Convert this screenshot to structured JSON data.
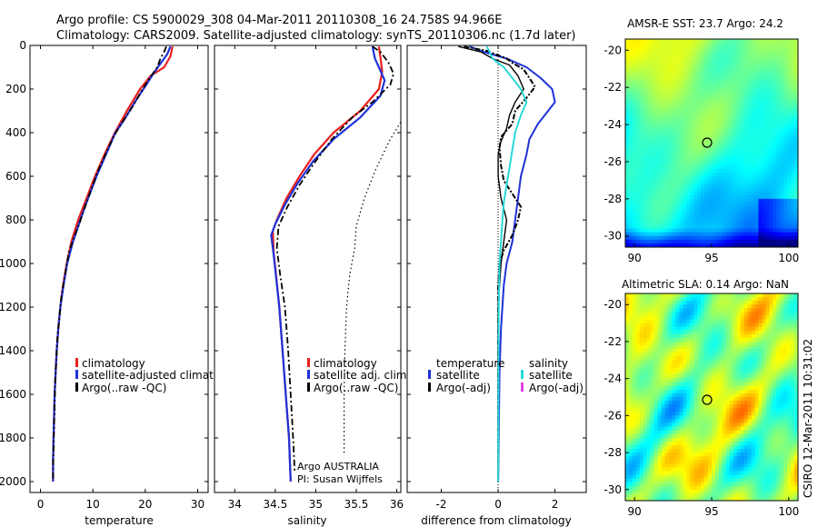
{
  "figure": {
    "title_line1": "Argo profile: CS 5900029_308 04-Mar-2011 20110308_16 24.758S 94.966E",
    "title_line2": "Climatology: CARS2009. Satellite-adjusted climatology: synTS_20110306.nc (1.7d later)",
    "side_label": "CSIRO 12-Mar-2011 10:31:02"
  },
  "colors": {
    "climatology": "#e8201e",
    "satellite": "#1e32d8",
    "argo": "#000000",
    "salinity_satellite": "#28d8d8",
    "salinity_argo": "#e040e0"
  },
  "chart_data": [
    {
      "type": "line",
      "id": "temperature",
      "xlabel": "temperature",
      "xlim": [
        -2,
        32
      ],
      "ylim": [
        2050,
        0
      ],
      "xticks": [
        0,
        10,
        20,
        30
      ],
      "yticks": [
        0,
        200,
        400,
        600,
        800,
        1000,
        1200,
        1400,
        1600,
        1800,
        2000
      ],
      "legend": [
        "climatology",
        "satellite-adjusted climatolo",
        "Argo(..raw -QC)"
      ],
      "series": [
        {
          "name": "climatology",
          "color": "#e8201e",
          "width": 2.2,
          "dash": "",
          "points": [
            [
              25.2,
              5
            ],
            [
              24.8,
              50
            ],
            [
              23.6,
              100
            ],
            [
              21.0,
              140
            ],
            [
              19.0,
              200
            ],
            [
              16.5,
              300
            ],
            [
              14.2,
              400
            ],
            [
              12.2,
              500
            ],
            [
              10.4,
              600
            ],
            [
              8.8,
              700
            ],
            [
              7.2,
              800
            ],
            [
              5.9,
              900
            ],
            [
              5.0,
              1000
            ],
            [
              4.3,
              1100
            ],
            [
              3.8,
              1200
            ],
            [
              3.4,
              1300
            ],
            [
              3.1,
              1400
            ],
            [
              2.9,
              1500
            ],
            [
              2.7,
              1600
            ],
            [
              2.6,
              1700
            ],
            [
              2.5,
              1800
            ],
            [
              2.4,
              1900
            ],
            [
              2.4,
              2000
            ]
          ]
        },
        {
          "name": "satellite-adjusted climatolo",
          "color": "#1e32d8",
          "width": 2.2,
          "dash": "",
          "points": [
            [
              24.8,
              5
            ],
            [
              24.2,
              40
            ],
            [
              23.0,
              80
            ],
            [
              21.8,
              120
            ],
            [
              20.2,
              180
            ],
            [
              18.0,
              260
            ],
            [
              16.0,
              340
            ],
            [
              14.3,
              400
            ],
            [
              12.5,
              500
            ],
            [
              10.7,
              600
            ],
            [
              9.1,
              700
            ],
            [
              7.6,
              800
            ],
            [
              6.2,
              900
            ],
            [
              5.1,
              1000
            ],
            [
              4.4,
              1100
            ],
            [
              3.8,
              1200
            ],
            [
              3.4,
              1300
            ],
            [
              3.1,
              1400
            ],
            [
              2.9,
              1500
            ],
            [
              2.7,
              1600
            ],
            [
              2.6,
              1700
            ],
            [
              2.5,
              1800
            ],
            [
              2.4,
              1900
            ],
            [
              2.4,
              2000
            ]
          ]
        },
        {
          "name": "Argo(..raw -QC)",
          "color": "#000000",
          "width": 1.8,
          "dash": "7,3,2,3",
          "points": [
            [
              24.0,
              5
            ],
            [
              23.6,
              30
            ],
            [
              22.9,
              60
            ],
            [
              22.3,
              100
            ],
            [
              21.1,
              140
            ],
            [
              19.5,
              200
            ],
            [
              17.6,
              280
            ],
            [
              15.4,
              360
            ],
            [
              13.9,
              420
            ],
            [
              12.4,
              500
            ],
            [
              10.9,
              580
            ],
            [
              9.4,
              680
            ],
            [
              8.2,
              760
            ],
            [
              7.4,
              820
            ],
            [
              6.4,
              880
            ],
            [
              5.4,
              950
            ],
            [
              4.7,
              1050
            ],
            [
              4.0,
              1150
            ],
            [
              3.6,
              1250
            ],
            [
              3.2,
              1350
            ],
            [
              3.0,
              1450
            ],
            [
              2.8,
              1550
            ],
            [
              2.7,
              1650
            ],
            [
              2.6,
              1750
            ],
            [
              2.5,
              1850
            ],
            [
              2.4,
              1950
            ],
            [
              2.4,
              2000
            ]
          ]
        }
      ]
    },
    {
      "type": "line",
      "id": "salinity",
      "xlabel": "salinity",
      "xlim": [
        33.75,
        36.05
      ],
      "ylim": [
        2050,
        0
      ],
      "xticks": [
        34,
        34.5,
        35,
        35.5,
        36
      ],
      "legend": [
        "climatology",
        "satellite adj. clim.",
        "Argo(..raw -QC)"
      ],
      "annotation": [
        "Argo AUSTRALIA",
        "PI: Susan Wijffels"
      ],
      "series": [
        {
          "name": "climatology",
          "color": "#e8201e",
          "width": 2.2,
          "dash": "",
          "points": [
            [
              35.78,
              5
            ],
            [
              35.8,
              60
            ],
            [
              35.82,
              120
            ],
            [
              35.78,
              200
            ],
            [
              35.55,
              300
            ],
            [
              35.22,
              400
            ],
            [
              34.98,
              500
            ],
            [
              34.8,
              600
            ],
            [
              34.64,
              700
            ],
            [
              34.52,
              800
            ],
            [
              34.47,
              850
            ],
            [
              34.48,
              950
            ],
            [
              34.51,
              1050
            ],
            [
              34.55,
              1200
            ],
            [
              34.59,
              1400
            ],
            [
              34.63,
              1600
            ],
            [
              34.67,
              1800
            ],
            [
              34.69,
              2000
            ]
          ]
        },
        {
          "name": "satellite adj. clim.",
          "color": "#1e32d8",
          "width": 2.2,
          "dash": "",
          "points": [
            [
              35.7,
              5
            ],
            [
              35.73,
              60
            ],
            [
              35.78,
              100
            ],
            [
              35.85,
              160
            ],
            [
              35.8,
              230
            ],
            [
              35.55,
              330
            ],
            [
              35.22,
              430
            ],
            [
              34.97,
              530
            ],
            [
              34.78,
              630
            ],
            [
              34.62,
              730
            ],
            [
              34.5,
              820
            ],
            [
              34.45,
              870
            ],
            [
              34.48,
              960
            ],
            [
              34.51,
              1060
            ],
            [
              34.55,
              1200
            ],
            [
              34.59,
              1400
            ],
            [
              34.63,
              1600
            ],
            [
              34.67,
              1800
            ],
            [
              34.69,
              2000
            ]
          ]
        },
        {
          "name": "Argo(..raw -QC)",
          "color": "#000000",
          "width": 1.8,
          "dash": "7,3,2,3",
          "points": [
            [
              35.7,
              5
            ],
            [
              35.8,
              30
            ],
            [
              35.9,
              80
            ],
            [
              35.96,
              130
            ],
            [
              35.92,
              180
            ],
            [
              35.7,
              260
            ],
            [
              35.45,
              330
            ],
            [
              35.2,
              430
            ],
            [
              34.98,
              540
            ],
            [
              34.8,
              640
            ],
            [
              34.65,
              740
            ],
            [
              34.54,
              830
            ],
            [
              34.52,
              930
            ],
            [
              34.56,
              1050
            ],
            [
              34.62,
              1200
            ],
            [
              34.66,
              1400
            ],
            [
              34.69,
              1600
            ],
            [
              34.72,
              1800
            ],
            [
              34.74,
              1950
            ]
          ]
        },
        {
          "name": "",
          "color": "#000000",
          "width": 1.2,
          "dash": "1.5,3",
          "points": [
            [
              36.1,
              320
            ],
            [
              35.92,
              430
            ],
            [
              35.75,
              560
            ],
            [
              35.6,
              700
            ],
            [
              35.5,
              830
            ],
            [
              35.48,
              930
            ],
            [
              35.42,
              1050
            ],
            [
              35.38,
              1200
            ],
            [
              35.36,
              1400
            ],
            [
              35.35,
              1600
            ],
            [
              35.35,
              1800
            ],
            [
              35.35,
              1880
            ]
          ]
        }
      ]
    },
    {
      "type": "line",
      "id": "difference",
      "xlabel": "difference from climatology",
      "xlim": [
        -3.2,
        3.1
      ],
      "ylim": [
        2050,
        0
      ],
      "xticks": [
        -2,
        0,
        2
      ],
      "legend_temperature": {
        "heading": "temperature",
        "items": [
          "satellite",
          "Argo(-adj)"
        ]
      },
      "legend_salinity": {
        "heading": "salinity",
        "items": [
          "satellite",
          "Argo(-adj)"
        ]
      },
      "series": [
        {
          "name": "satellite",
          "color": "#1e32d8",
          "width": 2.0,
          "dash": "",
          "points": [
            [
              -1.0,
              5
            ],
            [
              -0.5,
              30
            ],
            [
              0.3,
              60
            ],
            [
              1.0,
              100
            ],
            [
              1.5,
              150
            ],
            [
              1.9,
              200
            ],
            [
              2.0,
              260
            ],
            [
              1.7,
              310
            ],
            [
              1.4,
              360
            ],
            [
              1.1,
              430
            ],
            [
              1.0,
              500
            ],
            [
              0.8,
              600
            ],
            [
              0.7,
              700
            ],
            [
              0.6,
              800
            ],
            [
              0.5,
              900
            ],
            [
              0.3,
              1000
            ],
            [
              0.2,
              1100
            ],
            [
              0.1,
              1300
            ],
            [
              0.05,
              1500
            ],
            [
              0.03,
              1700
            ],
            [
              0.0,
              2000
            ]
          ]
        },
        {
          "name": "Argo(-adj)",
          "color": "#000000",
          "width": 2.0,
          "dash": "6,2,2,2",
          "points": [
            [
              -1.2,
              5
            ],
            [
              -0.4,
              25
            ],
            [
              0.3,
              60
            ],
            [
              0.5,
              80
            ],
            [
              0.9,
              110
            ],
            [
              1.1,
              150
            ],
            [
              1.3,
              190
            ],
            [
              1.0,
              240
            ],
            [
              0.6,
              300
            ],
            [
              0.5,
              360
            ],
            [
              0.1,
              420
            ],
            [
              0.05,
              470
            ],
            [
              0.1,
              550
            ],
            [
              0.2,
              620
            ],
            [
              0.5,
              680
            ],
            [
              0.8,
              740
            ],
            [
              0.7,
              800
            ],
            [
              0.5,
              870
            ],
            [
              0.2,
              940
            ],
            [
              0.05,
              1000
            ],
            [
              0.0,
              1100
            ],
            [
              0.0,
              1300
            ],
            [
              0.0,
              1600
            ],
            [
              0.0,
              2000
            ]
          ]
        },
        {
          "name": "Argo(-adj)",
          "color": "#000000",
          "width": 1.4,
          "dash": "",
          "points": [
            [
              -1.4,
              5
            ],
            [
              -0.6,
              30
            ],
            [
              -0.2,
              60
            ],
            [
              0.4,
              90
            ],
            [
              0.7,
              140
            ],
            [
              0.9,
              200
            ],
            [
              0.6,
              260
            ],
            [
              0.4,
              320
            ],
            [
              0.3,
              380
            ],
            [
              0.1,
              440
            ],
            [
              0.0,
              500
            ],
            [
              0.0,
              600
            ],
            [
              0.1,
              700
            ],
            [
              0.3,
              800
            ],
            [
              0.2,
              900
            ],
            [
              0.1,
              1000
            ],
            [
              0.0,
              1200
            ],
            [
              0.0,
              2000
            ]
          ]
        },
        {
          "name": "satellite",
          "color": "#28d8d8",
          "width": 2.0,
          "dash": "",
          "points": [
            [
              -0.4,
              5
            ],
            [
              -0.3,
              30
            ],
            [
              -0.2,
              60
            ],
            [
              0.2,
              100
            ],
            [
              0.5,
              150
            ],
            [
              0.8,
              200
            ],
            [
              1.0,
              260
            ],
            [
              0.8,
              320
            ],
            [
              0.6,
              400
            ],
            [
              0.5,
              480
            ],
            [
              0.4,
              560
            ],
            [
              0.3,
              640
            ],
            [
              0.2,
              720
            ],
            [
              0.15,
              800
            ],
            [
              0.1,
              900
            ],
            [
              0.05,
              1000
            ],
            [
              0.02,
              1200
            ],
            [
              0.01,
              1600
            ],
            [
              0.0,
              2000
            ]
          ]
        }
      ]
    },
    {
      "type": "heatmap",
      "id": "sst_map",
      "title": "AMSR-E SST: 23.7 Argo: 24.2",
      "xlim": [
        89.4,
        100.6
      ],
      "ylim": [
        -30.6,
        -19.4
      ],
      "xticks": [
        90,
        95,
        100
      ],
      "yticks": [
        -20,
        -22,
        -24,
        -26,
        -28,
        -30
      ],
      "marker": [
        95.0,
        -24.76
      ]
    },
    {
      "type": "heatmap",
      "id": "sla_map",
      "title": "Altimetric SLA: 0.14 Argo: NaN",
      "xlim": [
        89.4,
        100.6
      ],
      "ylim": [
        -30.6,
        -19.4
      ],
      "xticks": [
        90,
        95,
        100
      ],
      "yticks": [
        -20,
        -22,
        -24,
        -26,
        -28,
        -30
      ],
      "marker": [
        95.0,
        -24.76
      ]
    }
  ]
}
